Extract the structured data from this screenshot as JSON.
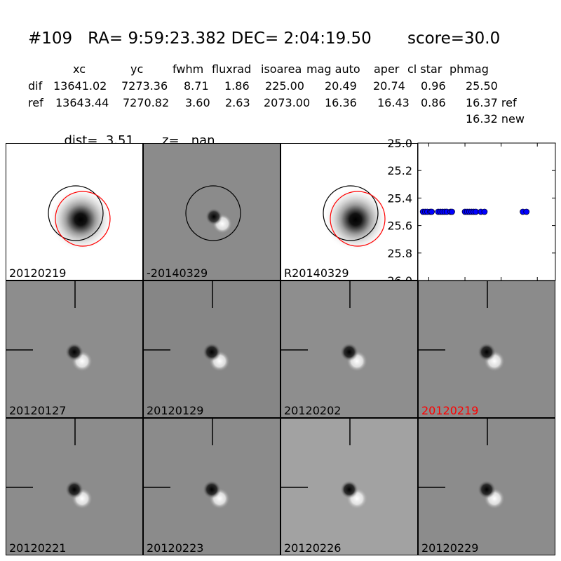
{
  "header": {
    "title": "#109   RA= 9:59:23.382 DEC= 2:04:19.50       score=30.0",
    "columns": [
      "xc",
      "yc",
      "fwhm",
      "fluxrad",
      "isoarea",
      "mag auto",
      "aper",
      "cl star",
      "phmag"
    ],
    "rows": [
      {
        "name": "dif",
        "values": [
          "13641.02",
          "7273.36",
          "8.71",
          "1.86",
          "225.00",
          "20.49",
          "20.74",
          "0.96",
          "25.50"
        ]
      },
      {
        "name": "ref",
        "values": [
          "13643.44",
          "7270.82",
          "3.60",
          "2.63",
          "2073.00",
          "16.36",
          "16.43",
          "0.86",
          "16.37 ref"
        ]
      }
    ],
    "extra_phmag": "16.32 new",
    "dist_label": "dist=",
    "dist_value": "3.51",
    "z_label": "z=",
    "z_value": "nan"
  },
  "top_panels": [
    {
      "label": "20120219",
      "style": "white",
      "circles": [
        "black",
        "red"
      ]
    },
    {
      "label": "-20140329",
      "style": "gray",
      "circles": [
        "black"
      ]
    },
    {
      "label": "R20140329",
      "style": "white",
      "circles": [
        "black",
        "red"
      ]
    }
  ],
  "stamps": [
    {
      "label": "20120127",
      "bg": "#8d8d8d",
      "label_color": "#000000"
    },
    {
      "label": "20120129",
      "bg": "#868686",
      "label_color": "#000000"
    },
    {
      "label": "20120202",
      "bg": "#8e8e8e",
      "label_color": "#000000"
    },
    {
      "label": "20120219",
      "bg": "#8b8b8b",
      "label_color": "#ff0000"
    },
    {
      "label": "20120221",
      "bg": "#8c8c8c",
      "label_color": "#000000"
    },
    {
      "label": "20120223",
      "bg": "#8b8b8b",
      "label_color": "#000000"
    },
    {
      "label": "20120226",
      "bg": "#a2a2a2",
      "label_color": "#000000"
    },
    {
      "label": "20120229",
      "bg": "#8c8c8c",
      "label_color": "#000000"
    }
  ],
  "chart_data": {
    "type": "scatter",
    "title": "",
    "xlabel": "",
    "ylabel": "",
    "xlim": [
      -65,
      125
    ],
    "ylim": [
      26.0,
      25.0
    ],
    "y_inverted": true,
    "xticks": [
      "-50",
      "0",
      "50",
      "100"
    ],
    "xtick_values": [
      -50,
      0,
      50,
      100
    ],
    "yticks": [
      "25.0",
      "25.2",
      "25.4",
      "25.6",
      "25.8",
      "26.0"
    ],
    "ytick_values": [
      25.0,
      25.2,
      25.4,
      25.6,
      25.8,
      26.0
    ],
    "marker_color": "#0000ff",
    "x": [
      -58,
      -55,
      -52,
      -48,
      -46,
      -37,
      -34,
      -31,
      -28,
      -25,
      -20,
      -18,
      0,
      3,
      6,
      9,
      12,
      15,
      22,
      27,
      80,
      85
    ],
    "y": [
      25.5,
      25.5,
      25.5,
      25.5,
      25.5,
      25.5,
      25.5,
      25.5,
      25.5,
      25.5,
      25.5,
      25.5,
      25.5,
      25.5,
      25.5,
      25.5,
      25.5,
      25.5,
      25.5,
      25.5,
      25.5,
      25.5
    ]
  }
}
